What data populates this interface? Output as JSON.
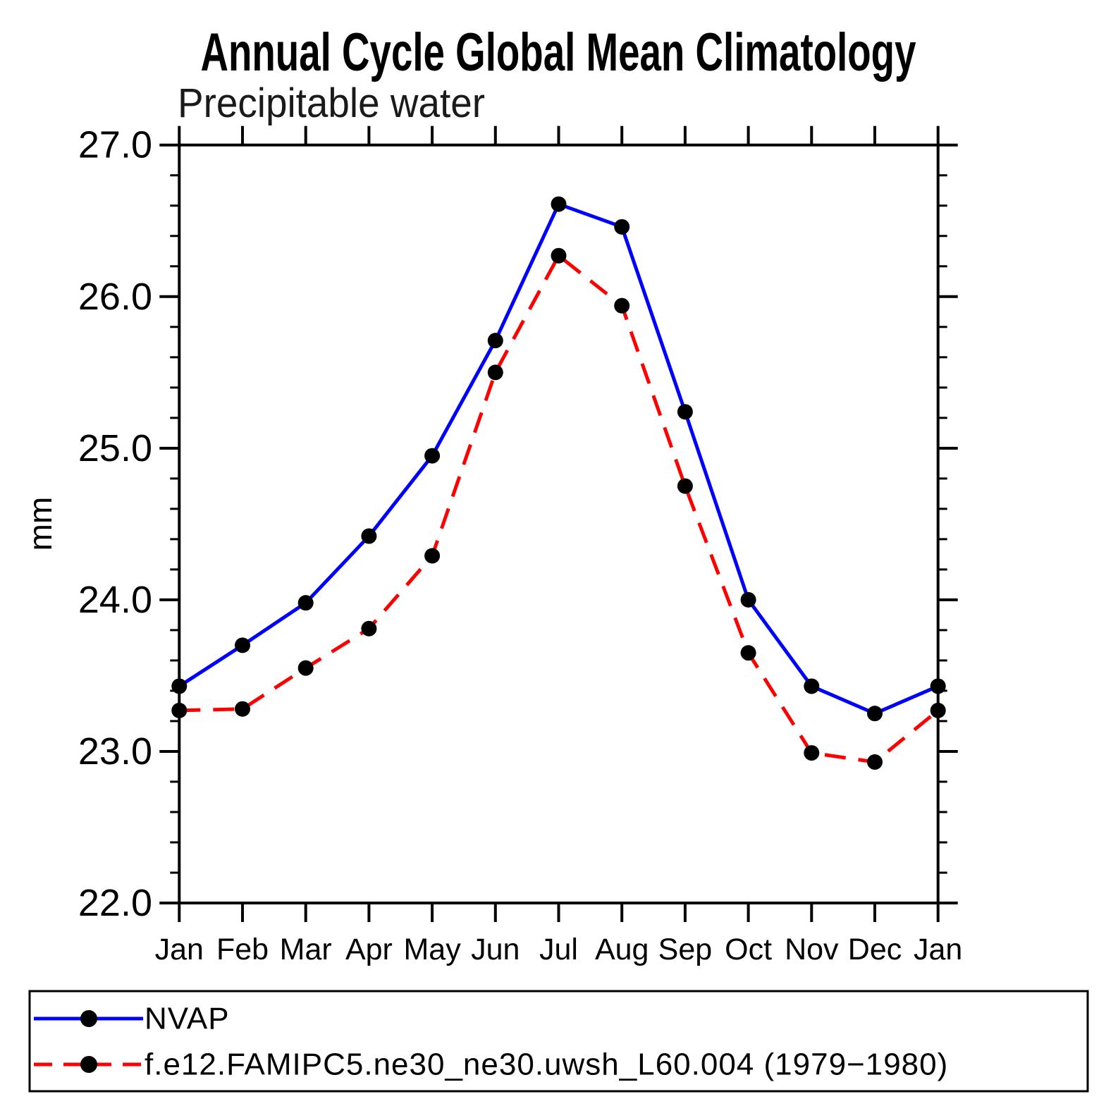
{
  "chart": {
    "title": "Annual Cycle Global Mean Climatology",
    "subtitle": "Precipitable water",
    "ylabel": "mm"
  },
  "chart_data": {
    "type": "line",
    "title": "Annual Cycle Global Mean Climatology",
    "subtitle": "Precipitable water",
    "ylabel": "mm",
    "xlabel": "",
    "x_categories": [
      "Jan",
      "Feb",
      "Mar",
      "Apr",
      "May",
      "Jun",
      "Jul",
      "Aug",
      "Sep",
      "Oct",
      "Nov",
      "Dec",
      "Jan"
    ],
    "series": [
      {
        "name": "NVAP",
        "color": "#0000ff",
        "line_style": "solid",
        "marker": "filled-circle",
        "marker_color": "#000000",
        "values": [
          23.43,
          23.7,
          23.98,
          24.42,
          24.95,
          25.71,
          26.61,
          26.46,
          25.24,
          24.0,
          23.43,
          23.25,
          23.43
        ]
      },
      {
        "name": "f.e12.FAMIPC5.ne30_ne30.uwsh_L60.004 (1979−1980)",
        "color": "#ff0000",
        "line_style": "dashed",
        "marker": "filled-circle",
        "marker_color": "#000000",
        "values": [
          23.27,
          23.28,
          23.55,
          23.81,
          24.29,
          25.5,
          26.27,
          25.94,
          24.75,
          23.65,
          22.99,
          22.93,
          23.27
        ]
      }
    ],
    "ylim": [
      22.0,
      27.0
    ],
    "y_major_ticks": [
      22.0,
      23.0,
      24.0,
      25.0,
      26.0,
      27.0
    ],
    "y_tick_labels": [
      "22.0",
      "23.0",
      "24.0",
      "25.0",
      "26.0",
      "27.0"
    ],
    "y_minor_step": 0.2,
    "grid": false,
    "frame": "box with outward ticks on all four sides",
    "legend_position": "bottom boxed"
  },
  "legend": {
    "items": [
      {
        "label": "NVAP",
        "color": "#0000ff",
        "style": "solid"
      },
      {
        "label": "f.e12.FAMIPC5.ne30_ne30.uwsh_L60.004 (1979−1980)",
        "color": "#ff0000",
        "style": "dashed"
      }
    ]
  }
}
